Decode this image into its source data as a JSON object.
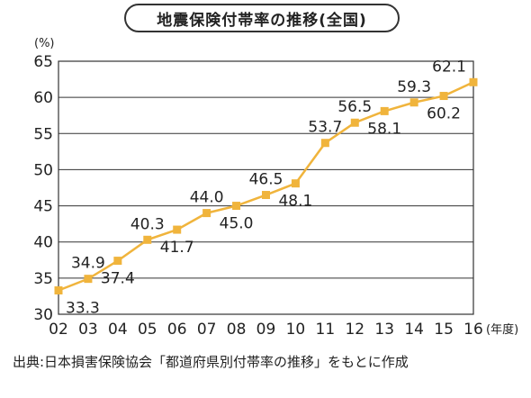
{
  "chart_data": {
    "type": "line",
    "title": "地震保険付帯率の推移(全国)",
    "ylabel": "(%)",
    "xlabel": "(年度)",
    "categories": [
      "02",
      "03",
      "04",
      "05",
      "06",
      "07",
      "08",
      "09",
      "10",
      "11",
      "12",
      "13",
      "14",
      "15",
      "16"
    ],
    "series": [
      {
        "values": [
          33.3,
          34.9,
          37.4,
          40.3,
          41.7,
          44.0,
          45.0,
          46.5,
          48.1,
          53.7,
          56.5,
          58.1,
          59.3,
          60.2,
          62.1
        ]
      }
    ],
    "data_labels": [
      "33.3",
      "34.9",
      "37.4",
      "40.3",
      "41.7",
      "44.0",
      "45.0",
      "46.5",
      "48.1",
      "53.7",
      "56.5",
      "58.1",
      "59.3",
      "60.2",
      "62.1"
    ],
    "label_positions": [
      "below",
      "above",
      "below",
      "above",
      "below",
      "above",
      "below",
      "above",
      "below",
      "above",
      "above",
      "below",
      "above",
      "below",
      "above"
    ],
    "ylim": [
      30,
      65
    ],
    "yticks": [
      30,
      35,
      40,
      45,
      50,
      55,
      60,
      65
    ],
    "grid": true,
    "legend": "none",
    "colors": {
      "line": "#f0b43c",
      "marker": "#f0b43c",
      "grid": "#333333",
      "frame": "#333333"
    }
  },
  "source": "出典:日本損害保険協会「都道府県別付帯率の推移」をもとに作成"
}
